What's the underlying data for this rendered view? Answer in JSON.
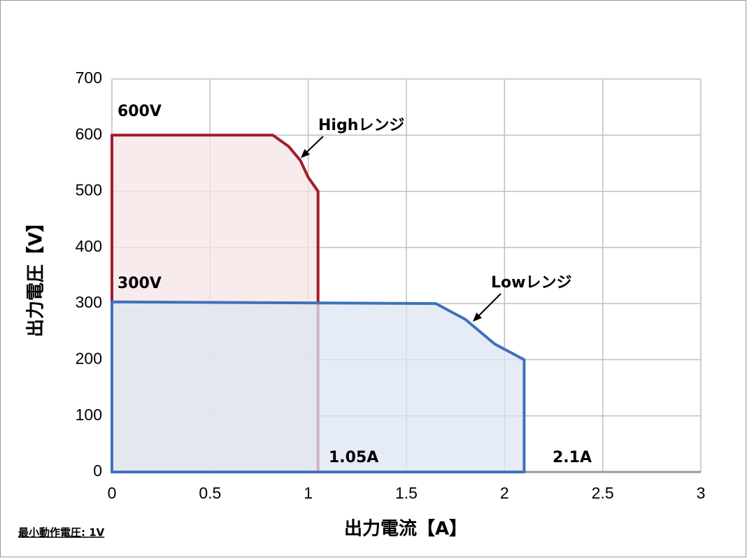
{
  "chart_data": {
    "type": "area",
    "x_label": "出力電流【A】",
    "y_label": "出力電圧【V】",
    "xlim": [
      0,
      3
    ],
    "xticks": [
      0,
      0.5,
      1,
      1.5,
      2,
      2.5,
      3
    ],
    "ylim": [
      0,
      700
    ],
    "yticks": [
      0,
      100,
      200,
      300,
      400,
      500,
      600,
      700
    ],
    "grid": true,
    "series": [
      {
        "name": "Highレンジ",
        "color": "#a31c2c",
        "fill": "#f4e4e5",
        "x": [
          0,
          0,
          0.82,
          0.9,
          0.96,
          1.0,
          1.05,
          1.05
        ],
        "values": [
          0,
          600,
          600,
          580,
          555,
          525,
          500,
          0
        ]
      },
      {
        "name": "Lowレンジ",
        "color": "#3f72b9",
        "fill": "#dce6f2",
        "x": [
          0,
          0,
          1.65,
          1.8,
          1.95,
          2.1,
          2.1
        ],
        "values": [
          0,
          303,
          300,
          272,
          228,
          200,
          0
        ]
      }
    ],
    "annotations": [
      "600V",
      "300V",
      "1.05A",
      "2.1A"
    ],
    "footnote": "最小動作電圧: 1V"
  }
}
